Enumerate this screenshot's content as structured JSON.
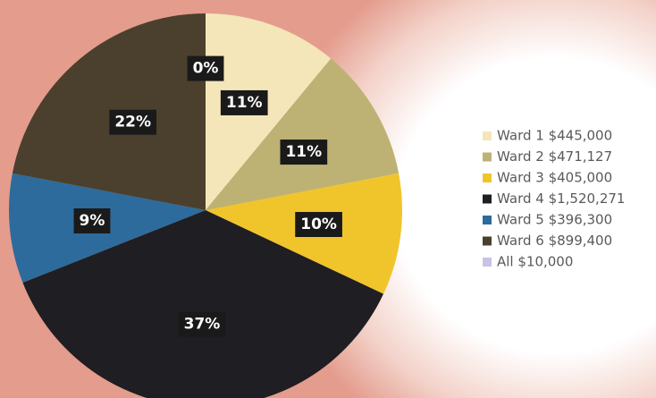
{
  "chart_data": {
    "type": "pie",
    "categories": [
      "Ward 1 $445,000",
      "Ward 2 $471,127",
      "Ward 3 $405,000",
      "Ward 4 $1,520,271",
      "Ward 5 $396,300",
      "Ward 6 $899,400",
      "All $10,000"
    ],
    "values": [
      11,
      11,
      10,
      37,
      9,
      22,
      0
    ],
    "value_labels": [
      "11%",
      "11%",
      "10%",
      "37%",
      "9%",
      "22%",
      "0%"
    ],
    "colors": [
      "#f5e6b9",
      "#bdb274",
      "#f0c52c",
      "#1f1e22",
      "#2d6b9d",
      "#4b402d",
      "#c9c3e6"
    ],
    "legend": "right"
  }
}
